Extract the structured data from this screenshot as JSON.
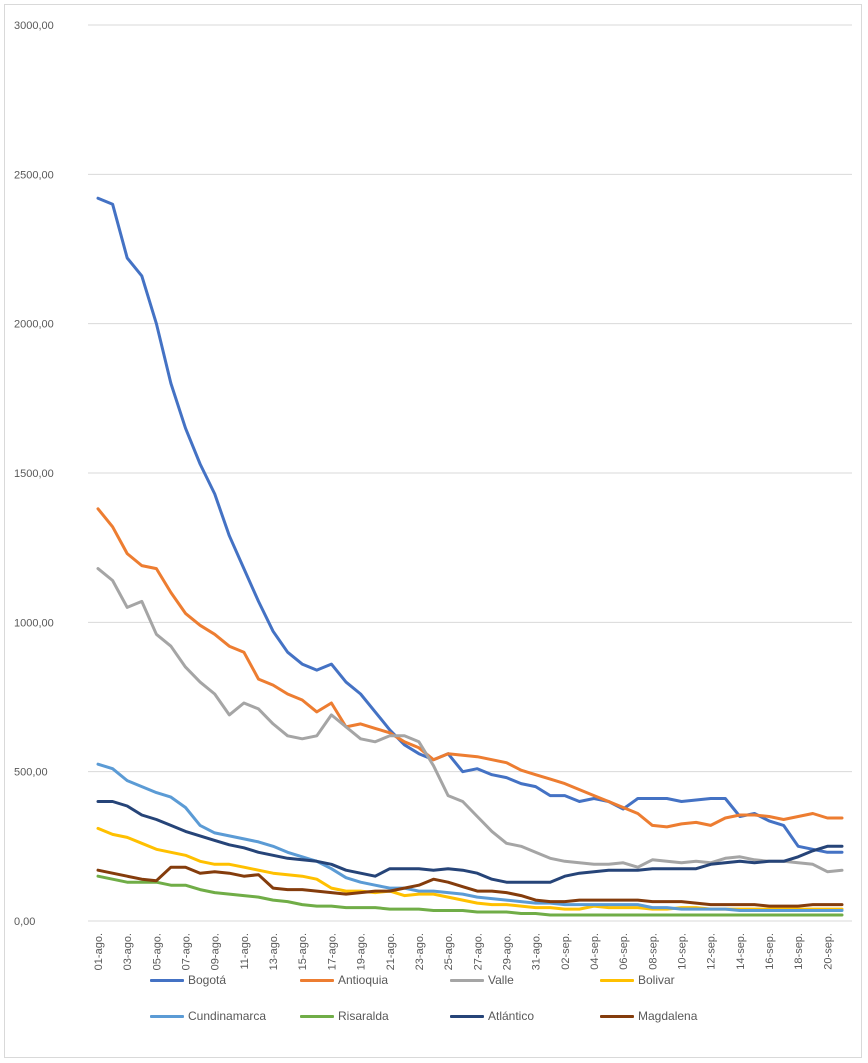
{
  "chart_data": {
    "type": "line",
    "title": "",
    "xlabel": "",
    "ylabel": "",
    "ylim": [
      0,
      3000
    ],
    "y_ticks": [
      "0,00",
      "500,00",
      "1000,00",
      "1500,00",
      "2000,00",
      "2500,00",
      "3000,00"
    ],
    "y_tick_values": [
      0,
      500,
      1000,
      1500,
      2000,
      2500,
      3000
    ],
    "grid": "horizontal",
    "legend_position": "bottom",
    "x": [
      "01-ago.",
      "02-ago.",
      "03-ago.",
      "04-ago.",
      "05-ago.",
      "06-ago.",
      "07-ago.",
      "08-ago.",
      "09-ago.",
      "10-ago.",
      "11-ago.",
      "12-ago.",
      "13-ago.",
      "14-ago.",
      "15-ago.",
      "16-ago.",
      "17-ago.",
      "18-ago.",
      "19-ago.",
      "20-ago.",
      "21-ago.",
      "22-ago.",
      "23-ago.",
      "24-ago.",
      "25-ago.",
      "26-ago.",
      "27-ago.",
      "28-ago.",
      "29-ago.",
      "30-ago.",
      "31-ago.",
      "01-sep.",
      "02-sep.",
      "03-sep.",
      "04-sep.",
      "05-sep.",
      "06-sep.",
      "07-sep.",
      "08-sep.",
      "09-sep.",
      "10-sep.",
      "11-sep.",
      "12-sep.",
      "13-sep.",
      "14-sep.",
      "15-sep.",
      "16-sep.",
      "17-sep.",
      "18-sep.",
      "19-sep.",
      "20-sep.",
      "21-sep."
    ],
    "x_tick_labels": [
      "01-ago.",
      "03-ago.",
      "05-ago.",
      "07-ago.",
      "09-ago.",
      "11-ago.",
      "13-ago.",
      "15-ago.",
      "17-ago.",
      "19-ago.",
      "21-ago.",
      "23-ago.",
      "25-ago.",
      "27-ago.",
      "29-ago.",
      "31-ago.",
      "02-sep.",
      "04-sep.",
      "06-sep.",
      "08-sep.",
      "10-sep.",
      "12-sep.",
      "14-sep.",
      "16-sep.",
      "18-sep.",
      "20-sep."
    ],
    "series": [
      {
        "name": "Bogotá",
        "color": "#4472c4",
        "values": [
          2420,
          2400,
          2220,
          2160,
          2000,
          1800,
          1650,
          1530,
          1430,
          1290,
          1180,
          1070,
          970,
          900,
          860,
          840,
          860,
          800,
          760,
          700,
          640,
          590,
          560,
          540,
          560,
          500,
          510,
          490,
          480,
          460,
          450,
          420,
          420,
          400,
          410,
          400,
          375,
          410,
          410,
          410,
          400,
          405,
          410,
          410,
          350,
          360,
          335,
          320,
          250,
          240,
          230,
          230
        ]
      },
      {
        "name": "Antioquia",
        "color": "#ed7d31",
        "values": [
          1380,
          1320,
          1230,
          1190,
          1180,
          1100,
          1030,
          990,
          960,
          920,
          900,
          810,
          790,
          760,
          740,
          700,
          730,
          650,
          660,
          645,
          630,
          600,
          580,
          540,
          560,
          555,
          550,
          540,
          530,
          505,
          490,
          475,
          460,
          440,
          420,
          400,
          380,
          360,
          320,
          315,
          325,
          330,
          320,
          345,
          355,
          355,
          350,
          340,
          350,
          360,
          345,
          345
        ]
      },
      {
        "name": "Valle",
        "color": "#a5a5a5",
        "values": [
          1180,
          1140,
          1050,
          1070,
          960,
          920,
          850,
          800,
          760,
          690,
          730,
          710,
          660,
          620,
          610,
          620,
          690,
          650,
          610,
          600,
          620,
          620,
          600,
          520,
          420,
          400,
          350,
          300,
          260,
          250,
          230,
          210,
          200,
          195,
          190,
          190,
          195,
          180,
          205,
          200,
          195,
          200,
          195,
          210,
          215,
          205,
          200,
          200,
          195,
          190,
          165,
          170
        ]
      },
      {
        "name": "Bolivar",
        "color": "#ffc000",
        "values": [
          310,
          290,
          280,
          260,
          240,
          230,
          220,
          200,
          190,
          190,
          180,
          170,
          160,
          155,
          150,
          140,
          110,
          100,
          100,
          95,
          100,
          85,
          90,
          90,
          80,
          70,
          60,
          55,
          55,
          50,
          45,
          45,
          40,
          40,
          50,
          45,
          45,
          45,
          40,
          40,
          45,
          45,
          40,
          40,
          40,
          40,
          40,
          45,
          40,
          40,
          40,
          40
        ]
      },
      {
        "name": "Cundinamarca",
        "color": "#5b9bd5",
        "values": [
          525,
          510,
          470,
          450,
          430,
          415,
          380,
          320,
          295,
          285,
          275,
          265,
          250,
          230,
          215,
          200,
          175,
          145,
          130,
          120,
          110,
          110,
          100,
          100,
          95,
          90,
          80,
          75,
          70,
          65,
          60,
          60,
          55,
          55,
          55,
          55,
          55,
          55,
          45,
          45,
          40,
          40,
          40,
          40,
          35,
          35,
          35,
          35,
          35,
          35,
          35,
          35
        ]
      },
      {
        "name": "Risaralda",
        "color": "#70ad47",
        "values": [
          150,
          140,
          130,
          130,
          130,
          120,
          120,
          105,
          95,
          90,
          85,
          80,
          70,
          65,
          55,
          50,
          50,
          45,
          45,
          45,
          40,
          40,
          40,
          35,
          35,
          35,
          30,
          30,
          30,
          25,
          25,
          20,
          20,
          20,
          20,
          20,
          20,
          20,
          20,
          20,
          20,
          20,
          20,
          20,
          20,
          20,
          20,
          20,
          20,
          20,
          20,
          20
        ]
      },
      {
        "name": "Atlántico",
        "color": "#264478",
        "values": [
          400,
          400,
          385,
          355,
          340,
          320,
          300,
          285,
          270,
          255,
          245,
          230,
          220,
          210,
          205,
          200,
          190,
          170,
          160,
          150,
          175,
          175,
          175,
          170,
          175,
          170,
          160,
          140,
          130,
          130,
          130,
          130,
          150,
          160,
          165,
          170,
          170,
          170,
          175,
          175,
          175,
          175,
          190,
          195,
          200,
          195,
          200,
          200,
          215,
          235,
          250,
          250
        ]
      },
      {
        "name": "Magdalena",
        "color": "#843c0c",
        "values": [
          170,
          160,
          150,
          140,
          135,
          180,
          180,
          160,
          165,
          160,
          150,
          155,
          110,
          105,
          105,
          100,
          95,
          90,
          95,
          100,
          100,
          110,
          120,
          140,
          130,
          115,
          100,
          100,
          95,
          85,
          70,
          65,
          65,
          70,
          70,
          70,
          70,
          70,
          65,
          65,
          65,
          60,
          55,
          55,
          55,
          55,
          50,
          50,
          50,
          55,
          55,
          55
        ]
      }
    ]
  }
}
